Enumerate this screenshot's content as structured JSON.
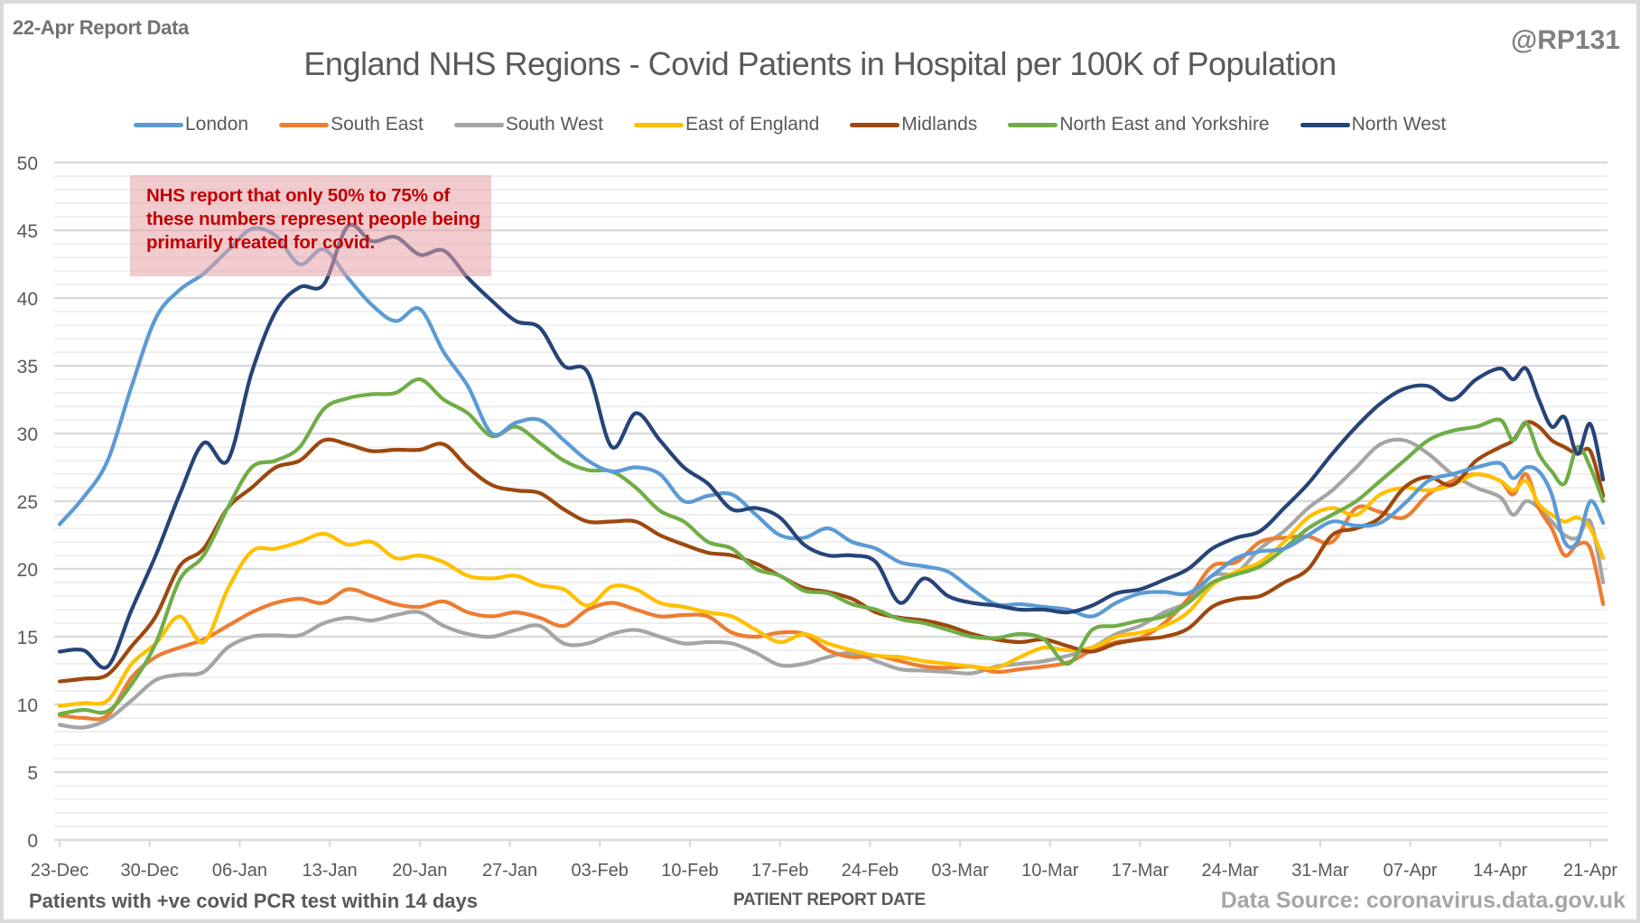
{
  "header": {
    "report_date": "22-Apr Report Data",
    "handle": "@RP131",
    "title": "England NHS Regions - Covid Patients in Hospital per 100K of Population"
  },
  "annotation": {
    "text": "NHS report that only 50% to 75% of these numbers represent people being primarily treated for covid."
  },
  "footer": {
    "left": "Patients with +ve covid PCR test within 14 days",
    "center": "PATIENT REPORT DATE",
    "right": "Data Source: coronavirus.data.gov.uk"
  },
  "chart_data": {
    "type": "line",
    "title": "England NHS Regions - Covid Patients in Hospital per 100K of Population",
    "xlabel": "PATIENT REPORT DATE",
    "ylabel": "",
    "ylim": [
      0,
      50
    ],
    "yticks": [
      0,
      5,
      10,
      15,
      20,
      25,
      30,
      35,
      40,
      45,
      50
    ],
    "grid": true,
    "legend_position": "top",
    "x_day_range": [
      0,
      120
    ],
    "x_start_date": "23-Dec",
    "xtick_labels": [
      "23-Dec",
      "30-Dec",
      "06-Jan",
      "13-Jan",
      "20-Jan",
      "27-Jan",
      "03-Feb",
      "10-Feb",
      "17-Feb",
      "24-Feb",
      "03-Mar",
      "10-Mar",
      "17-Mar",
      "24-Mar",
      "31-Mar",
      "07-Apr",
      "14-Apr",
      "21-Apr"
    ],
    "xtick_days": [
      0,
      7,
      14,
      21,
      28,
      35,
      42,
      49,
      56,
      63,
      70,
      77,
      84,
      91,
      98,
      105,
      112,
      119
    ],
    "x_sample_step_days": 2,
    "series": [
      {
        "name": "London",
        "color": "#5b9bd5",
        "values": [
          23.3,
          25.3,
          28.0,
          33.5,
          38.5,
          40.6,
          41.8,
          43.5,
          45.1,
          44.6,
          42.5,
          43.6,
          41.5,
          39.5,
          38.3,
          39.2,
          36.0,
          33.5,
          30.0,
          30.8,
          31.0,
          29.5,
          28.0,
          27.2,
          27.5,
          27.0,
          25.0,
          25.4,
          25.5,
          24.0,
          22.5,
          22.3,
          23.0,
          22.0,
          21.5,
          20.5,
          20.2,
          19.8,
          18.5,
          17.4,
          17.4,
          17.2,
          17.0,
          16.5,
          17.5,
          18.2,
          18.3,
          18.2,
          19.5,
          20.8,
          21.3,
          21.5,
          22.5,
          23.5,
          23.2,
          23.4,
          24.8,
          26.5,
          27.0,
          27.5,
          27.8
        ]
      },
      {
        "name": "South East",
        "color": "#ed7d31",
        "values": [
          9.2,
          9.0,
          9.2,
          12.0,
          13.5,
          14.2,
          14.8,
          15.8,
          16.8,
          17.5,
          17.8,
          17.5,
          18.5,
          18.0,
          17.4,
          17.2,
          17.6,
          16.8,
          16.5,
          16.8,
          16.4,
          15.8,
          17.0,
          17.5,
          17.0,
          16.5,
          16.6,
          16.5,
          15.3,
          15.0,
          15.3,
          15.2,
          14.0,
          13.5,
          13.6,
          13.2,
          12.8,
          12.7,
          12.8,
          12.4,
          12.6,
          12.8,
          13.1,
          14.0,
          14.6,
          14.9,
          16.0,
          17.8,
          20.2,
          20.5,
          22.0,
          22.3,
          22.4,
          22.0,
          24.5,
          24.2,
          23.8,
          25.5,
          26.5,
          27.0,
          26.5
        ]
      },
      {
        "name": "South West",
        "color": "#a5a5a5",
        "values": [
          8.5,
          8.3,
          8.9,
          10.3,
          11.8,
          12.2,
          12.4,
          14.2,
          15.0,
          15.1,
          15.1,
          16.0,
          16.4,
          16.2,
          16.6,
          16.8,
          15.8,
          15.2,
          15.0,
          15.5,
          15.8,
          14.5,
          14.5,
          15.2,
          15.5,
          15.0,
          14.5,
          14.6,
          14.5,
          13.8,
          12.9,
          13.0,
          13.5,
          13.8,
          13.2,
          12.6,
          12.5,
          12.4,
          12.3,
          12.8,
          13.0,
          13.2,
          13.6,
          14.2,
          15.2,
          15.8,
          16.8,
          17.6,
          19.5,
          19.7,
          21.5,
          22.8,
          24.5,
          25.8,
          27.5,
          29.2,
          29.5,
          28.5,
          27.0,
          26.0,
          25.3
        ]
      },
      {
        "name": "East of England",
        "color": "#ffc000",
        "values": [
          9.9,
          10.1,
          10.3,
          13.0,
          14.5,
          16.5,
          14.6,
          18.5,
          21.3,
          21.5,
          22.0,
          22.6,
          21.8,
          22.0,
          20.8,
          21.0,
          20.5,
          19.5,
          19.3,
          19.5,
          18.8,
          18.5,
          17.3,
          18.7,
          18.5,
          17.5,
          17.2,
          16.8,
          16.5,
          15.5,
          14.6,
          15.2,
          14.5,
          14.0,
          13.6,
          13.5,
          13.2,
          13.0,
          12.8,
          12.7,
          13.5,
          14.2,
          14.0,
          14.2,
          15.0,
          15.3,
          15.8,
          16.8,
          18.8,
          19.8,
          20.5,
          22.0,
          23.8,
          24.5,
          24.0,
          25.5,
          26.0,
          25.8,
          26.2,
          27.0,
          26.5
        ]
      },
      {
        "name": "Midlands",
        "color": "#9e480e",
        "values": [
          11.7,
          11.9,
          12.2,
          14.3,
          16.5,
          20.2,
          21.5,
          24.5,
          26.0,
          27.5,
          28.0,
          29.5,
          29.2,
          28.7,
          28.8,
          28.8,
          29.2,
          27.5,
          26.2,
          25.8,
          25.6,
          24.4,
          23.5,
          23.5,
          23.5,
          22.5,
          21.8,
          21.2,
          21.0,
          20.4,
          19.5,
          18.6,
          18.3,
          17.8,
          16.8,
          16.4,
          16.2,
          15.8,
          15.2,
          14.8,
          14.6,
          14.8,
          14.3,
          13.9,
          14.5,
          14.8,
          15.0,
          15.6,
          17.2,
          17.8,
          18.0,
          19.0,
          20.0,
          22.5,
          23.0,
          23.8,
          26.0,
          26.8,
          26.2,
          28.0,
          29.0
        ]
      },
      {
        "name": "North East and Yorkshire",
        "color": "#70ad47",
        "values": [
          9.3,
          9.6,
          9.5,
          11.5,
          14.5,
          19.2,
          21.0,
          24.5,
          27.5,
          28.0,
          29.0,
          31.8,
          32.6,
          32.9,
          33.0,
          34.0,
          32.5,
          31.5,
          29.8,
          30.5,
          29.3,
          28.0,
          27.3,
          27.2,
          26.0,
          24.3,
          23.5,
          22.0,
          21.5,
          20.0,
          19.5,
          18.4,
          18.2,
          17.4,
          17.0,
          16.3,
          16.0,
          15.5,
          15.0,
          14.9,
          15.2,
          14.8,
          13.0,
          15.5,
          15.8,
          16.2,
          16.5,
          17.5,
          19.0,
          19.6,
          20.2,
          21.5,
          23.0,
          24.0,
          25.0,
          26.5,
          28.0,
          29.5,
          30.2,
          30.5,
          31.0
        ]
      },
      {
        "name": "North West",
        "color": "#264478",
        "values": [
          13.9,
          14.0,
          12.8,
          17.0,
          21.0,
          25.5,
          29.3,
          28.0,
          34.5,
          39.0,
          40.8,
          41.0,
          45.3,
          44.2,
          44.5,
          43.2,
          43.5,
          41.5,
          39.8,
          38.3,
          37.8,
          35.0,
          34.5,
          29.0,
          31.5,
          29.5,
          27.5,
          26.3,
          24.4,
          24.5,
          23.8,
          21.8,
          21.0,
          21.0,
          20.5,
          17.5,
          19.3,
          18.0,
          17.5,
          17.3,
          17.0,
          17.0,
          16.8,
          17.3,
          18.2,
          18.5,
          19.2,
          20.0,
          21.5,
          22.3,
          22.8,
          24.5,
          26.3,
          28.5,
          30.5,
          32.2,
          33.3,
          33.5,
          32.5,
          34.0,
          34.8
        ]
      }
    ],
    "series_tail": [
      {
        "name": "London",
        "values": [
          26.7,
          27.5,
          27.2,
          25.5,
          22.0,
          22.0,
          25.0,
          23.4
        ]
      },
      {
        "name": "South East",
        "values": [
          25.5,
          27.0,
          24.5,
          23.0,
          21.0,
          21.8,
          21.5,
          17.4
        ]
      },
      {
        "name": "South West",
        "values": [
          24.0,
          25.0,
          24.5,
          23.5,
          22.5,
          22.3,
          23.5,
          19.0
        ]
      },
      {
        "name": "East of England",
        "values": [
          25.8,
          26.5,
          24.8,
          24.0,
          23.5,
          23.8,
          23.0,
          20.8
        ]
      },
      {
        "name": "Midlands",
        "values": [
          29.5,
          30.8,
          30.5,
          29.5,
          29.0,
          28.5,
          28.7,
          25.4
        ]
      },
      {
        "name": "North East and Yorkshire",
        "values": [
          29.5,
          30.8,
          28.5,
          27.2,
          26.3,
          29.0,
          27.5,
          25.0
        ]
      },
      {
        "name": "North West",
        "values": [
          34.0,
          34.8,
          32.5,
          30.5,
          31.2,
          28.5,
          30.7,
          26.6
        ]
      }
    ]
  }
}
